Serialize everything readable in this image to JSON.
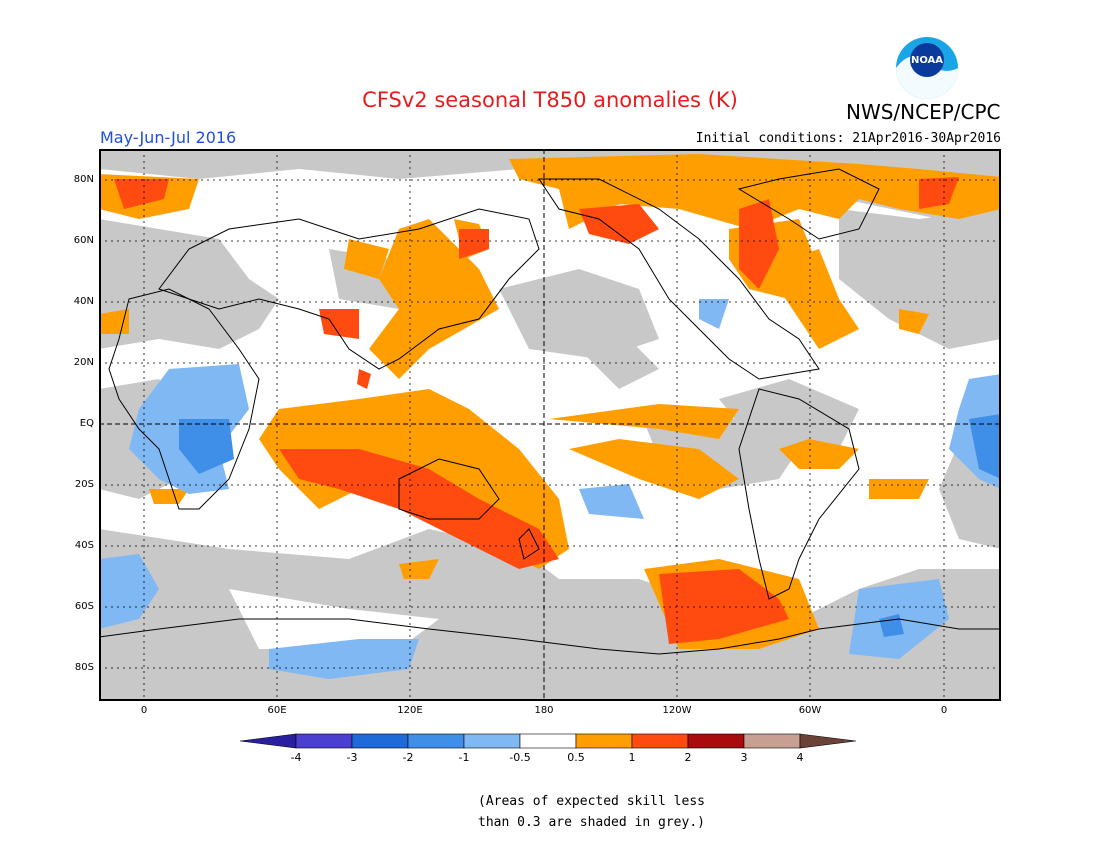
{
  "title": "CFSv2 seasonal T850 anomalies (K)",
  "agency": "NWS/NCEP/CPC",
  "logo_text": "NOAA",
  "period": "May-Jun-Jul 2016",
  "initial_conditions": "Initial conditions: 21Apr2016-30Apr2016",
  "lat_labels": [
    "80N",
    "60N",
    "40N",
    "20N",
    "EQ",
    "20S",
    "40S",
    "60S",
    "80S"
  ],
  "lon_labels": [
    "0",
    "60E",
    "120E",
    "180",
    "120W",
    "60W",
    "0"
  ],
  "colorbar": {
    "labels": [
      "-4",
      "-3",
      "-2",
      "-1",
      "-0.5",
      "0.5",
      "1",
      "2",
      "3",
      "4"
    ],
    "colors": [
      "#2a1fa0",
      "#4b3fd0",
      "#1e6ad8",
      "#3f8ee8",
      "#7fb8f2",
      "#ffffff",
      "#ff9e00",
      "#ff4a10",
      "#a80c0c",
      "#c8a092",
      "#6a4238"
    ]
  },
  "note_line1": "(Areas of expected skill less",
  "note_line2": "than 0.3 are shaded in grey.)",
  "colors": {
    "skill_grey": "#c8c8c8",
    "positive_1": "#ff9e00",
    "positive_2": "#ff4a10",
    "negative_1": "#7fb8f2",
    "negative_2": "#3f8ee8",
    "title_red": "#e81c1c",
    "period_blue": "#1f4fe0"
  }
}
